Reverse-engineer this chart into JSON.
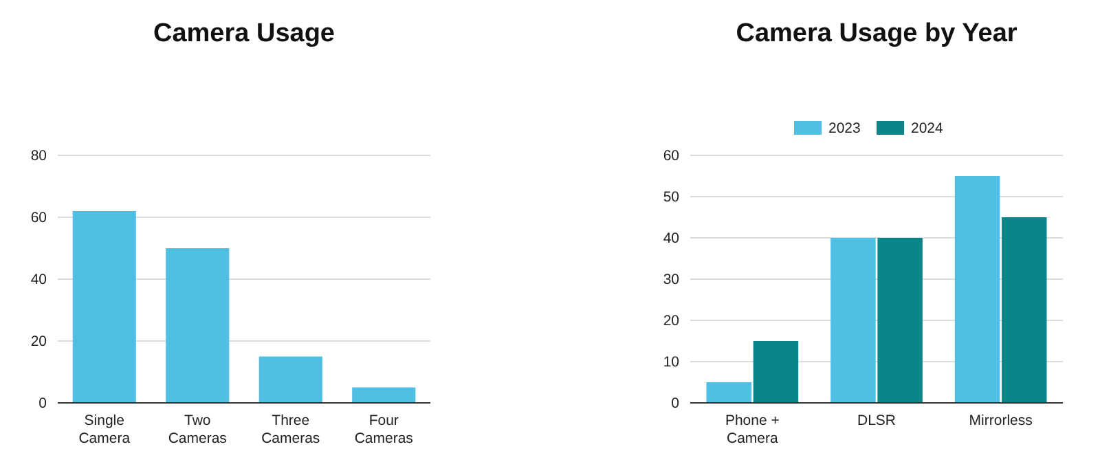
{
  "chart_data": [
    {
      "type": "bar",
      "title": "Camera Usage",
      "categories": [
        "Single Camera",
        "Two Cameras",
        "Three Cameras",
        "Four Cameras"
      ],
      "values": [
        62,
        50,
        15,
        5
      ],
      "color": "#4fbfe3",
      "ylim": [
        0,
        80
      ],
      "yticks": [
        0,
        20,
        40,
        60,
        80
      ],
      "grid": "y"
    },
    {
      "type": "bar",
      "title": "Camera Usage by Year",
      "categories": [
        "Phone + Camera",
        "DLSR",
        "Mirrorless"
      ],
      "series": [
        {
          "name": "2023",
          "color": "#4fbfe3",
          "values": [
            5,
            40,
            55
          ]
        },
        {
          "name": "2024",
          "color": "#0b8589",
          "values": [
            15,
            40,
            45
          ]
        }
      ],
      "ylim": [
        0,
        60
      ],
      "yticks": [
        0,
        10,
        20,
        30,
        40,
        50,
        60
      ],
      "grid": "y",
      "legend": "top"
    }
  ]
}
